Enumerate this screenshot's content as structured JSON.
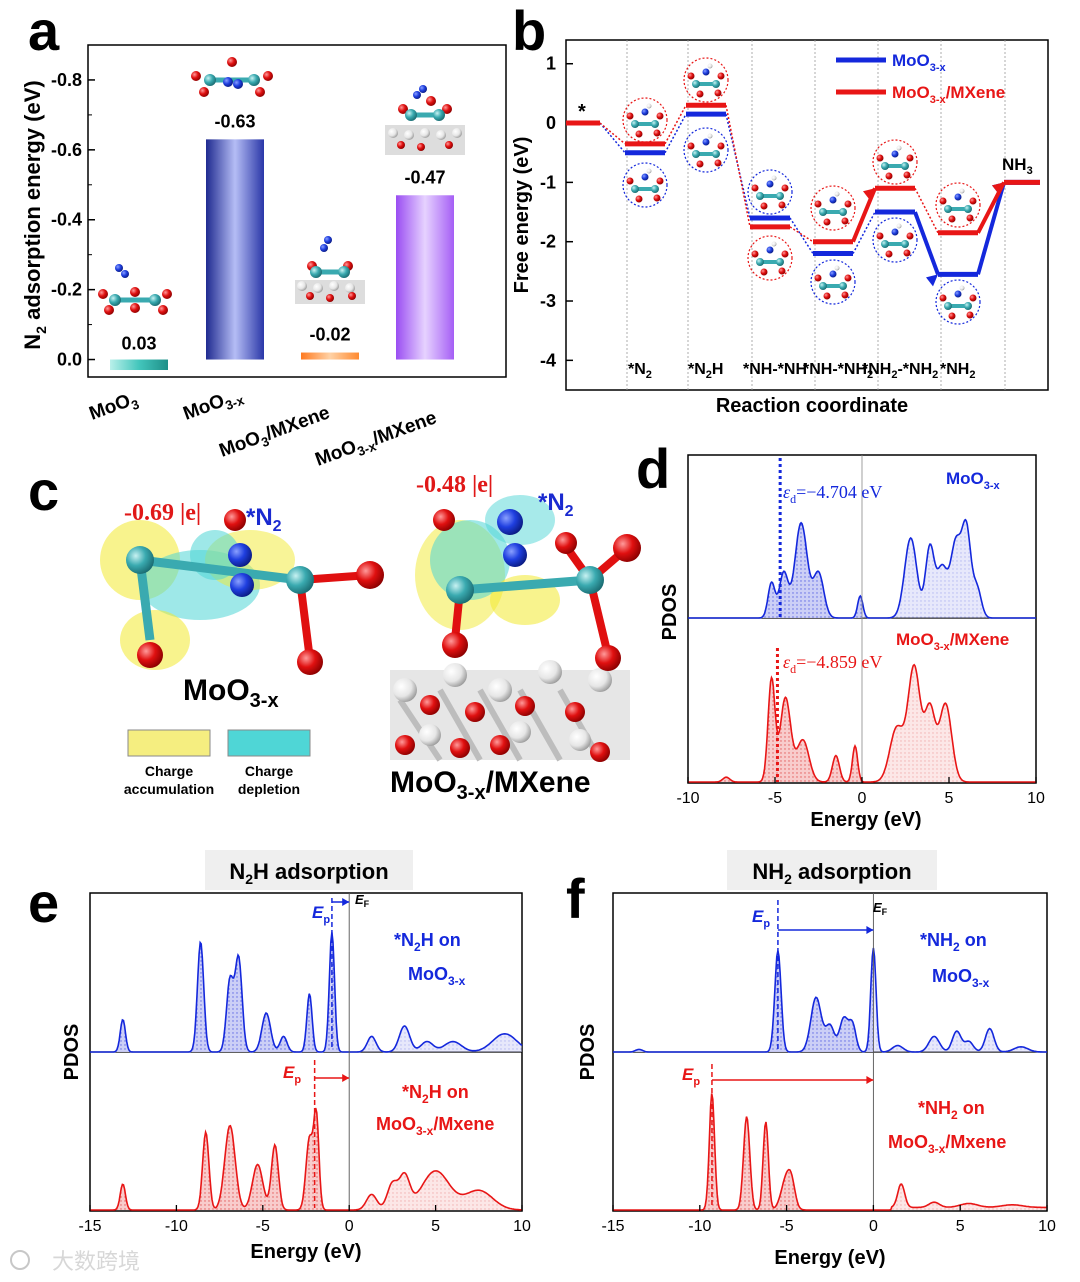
{
  "panels": {
    "a": "a",
    "b": "b",
    "c": "c",
    "d": "d",
    "e": "e",
    "f": "f"
  },
  "chart_data": [
    {
      "panel": "a",
      "type": "bar",
      "categories": [
        "MoO3",
        "MoO3-x",
        "MoO3/MXene",
        "MoO3-x/MXene"
      ],
      "values": [
        0.03,
        -0.63,
        -0.02,
        -0.47
      ],
      "value_labels": [
        "0.03",
        "-0.63",
        "-0.02",
        "-0.47"
      ],
      "colors": [
        "#43c6bc",
        "#3b4cc0",
        "#ff9a4a",
        "#b06ff5"
      ],
      "ylabel": "N2 adsorption energy (eV)",
      "ylim": [
        0.05,
        -0.9
      ],
      "yticks": [
        0.0,
        -0.2,
        -0.4,
        -0.6,
        -0.8
      ],
      "ytick_labels": [
        "0.0",
        "-0.2",
        "-0.4",
        "-0.6",
        "-0.8"
      ],
      "y_inverted": true
    },
    {
      "panel": "b",
      "type": "line",
      "xlabel": "Reaction coordinate",
      "ylabel": "Free energy (eV)",
      "ylim": [
        -4.5,
        1.4
      ],
      "yticks": [
        1,
        0,
        -1,
        -2,
        -3,
        -4
      ],
      "ytick_labels": [
        "1",
        "0",
        "-1",
        "-2",
        "-3",
        "-4"
      ],
      "steps": [
        "*",
        "*N2",
        "*N2H",
        "*NH-*NH",
        "*NH-*NH2",
        "*NH2-*NH2",
        "*NH2",
        "NH3"
      ],
      "series": [
        {
          "name": "MoO3-x",
          "color": "#1428dc",
          "values": [
            0,
            -0.5,
            0.15,
            -1.6,
            -2.2,
            -1.5,
            -2.55,
            -1.0
          ]
        },
        {
          "name": "MoO3-x/MXene",
          "color": "#e81616",
          "values": [
            0,
            -0.35,
            0.3,
            -1.75,
            -2.0,
            -1.1,
            -1.85,
            -1.0
          ]
        }
      ],
      "legend": "top-right",
      "annotations": [
        "*",
        "NH3"
      ]
    },
    {
      "panel": "d",
      "type": "area",
      "xlabel": "Energy (eV)",
      "ylabel": "PDOS",
      "xlim": [
        -10,
        10
      ],
      "xticks": [
        -10,
        -5,
        0,
        5,
        10
      ],
      "xtick_labels": [
        "-10",
        "-5",
        "0",
        "5",
        "10"
      ],
      "series": [
        {
          "name": "MoO3-x",
          "color": "#1428dc",
          "d_band_center": -4.704,
          "label": "εd=−4.704 eV"
        },
        {
          "name": "MoO3-x/MXene",
          "color": "#e81616",
          "d_band_center": -4.859,
          "label": "εd=−4.859 eV"
        }
      ]
    },
    {
      "panel": "e",
      "type": "area",
      "title": "N2H adsorption",
      "xlabel": "Energy (eV)",
      "ylabel": "PDOS",
      "xlim": [
        -15,
        10
      ],
      "xticks": [
        -15,
        -10,
        -5,
        0,
        5,
        10
      ],
      "xtick_labels": [
        "-15",
        "-10",
        "-5",
        "0",
        "5",
        "10"
      ],
      "series": [
        {
          "name": "*N2H on MoO3-x",
          "color": "#1428dc",
          "Ep": -1.0
        },
        {
          "name": "*N2H on MoO3-x/Mxene",
          "color": "#e81616",
          "Ep": -2.0
        }
      ],
      "markers": [
        "Ep",
        "EF"
      ]
    },
    {
      "panel": "f",
      "type": "area",
      "title": "NH2 adsorption",
      "xlabel": "Energy (eV)",
      "ylabel": "PDOS",
      "xlim": [
        -15,
        10
      ],
      "xticks": [
        -15,
        -10,
        -5,
        0,
        5,
        10
      ],
      "xtick_labels": [
        "-15",
        "-10",
        "-5",
        "0",
        "5",
        "10"
      ],
      "series": [
        {
          "name": "*NH2 on MoO3-x",
          "color": "#1428dc",
          "Ep": -5.5
        },
        {
          "name": "*NH2 on MoO3-x/Mxene",
          "color": "#e81616",
          "Ep": -9.3
        }
      ],
      "markers": [
        "Ep",
        "EF"
      ]
    }
  ],
  "panel_c": {
    "charge_left": "-0.69 |e|",
    "charge_right": "-0.48 |e|",
    "adsorbate": "*N",
    "adsorbate_sub": "2",
    "label_left": "MoO",
    "label_left_sub": "3-x",
    "label_right": "MoO",
    "label_right_sub": "3-x",
    "label_right_tail": "/MXene",
    "legend_accumulation": [
      "Charge",
      "accumulation"
    ],
    "legend_depletion": [
      "Charge",
      "depletion"
    ],
    "colors": {
      "accumulation": "#f2ea30",
      "depletion": "#4fd6d6",
      "charge_text": "#e01818",
      "adsorbate_text": "#1a2ad0"
    }
  },
  "watermark": "大数跨境"
}
